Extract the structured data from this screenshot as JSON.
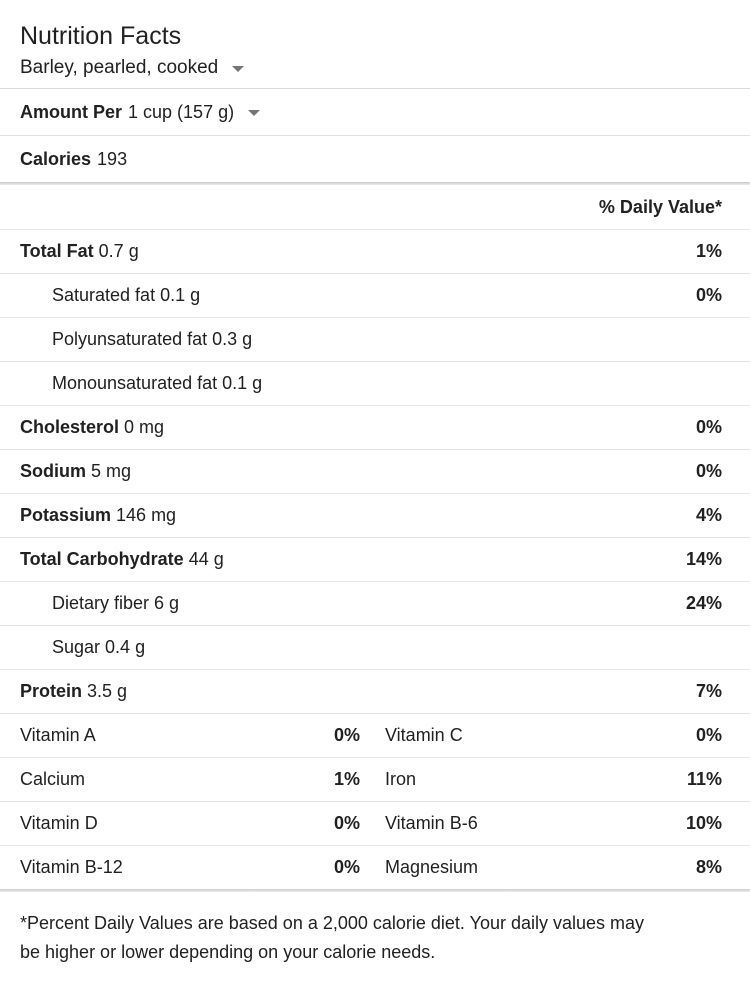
{
  "header": {
    "title": "Nutrition Facts",
    "food_name": "Barley, pearled, cooked"
  },
  "serving": {
    "label": "Amount Per",
    "value": "1 cup (157 g)"
  },
  "calories": {
    "label": "Calories",
    "value": "193"
  },
  "daily_value_header": "% Daily Value*",
  "nutrients": [
    {
      "label": "Total Fat",
      "amount": "0.7 g",
      "dv": "1%",
      "bold": true,
      "indent": false
    },
    {
      "label": "Saturated fat",
      "amount": "0.1 g",
      "dv": "0%",
      "bold": false,
      "indent": true
    },
    {
      "label": "Polyunsaturated fat",
      "amount": "0.3 g",
      "dv": "",
      "bold": false,
      "indent": true
    },
    {
      "label": "Monounsaturated fat",
      "amount": "0.1 g",
      "dv": "",
      "bold": false,
      "indent": true
    },
    {
      "label": "Cholesterol",
      "amount": "0 mg",
      "dv": "0%",
      "bold": true,
      "indent": false
    },
    {
      "label": "Sodium",
      "amount": "5 mg",
      "dv": "0%",
      "bold": true,
      "indent": false
    },
    {
      "label": "Potassium",
      "amount": "146 mg",
      "dv": "4%",
      "bold": true,
      "indent": false
    },
    {
      "label": "Total Carbohydrate",
      "amount": "44 g",
      "dv": "14%",
      "bold": true,
      "indent": false
    },
    {
      "label": "Dietary fiber",
      "amount": "6 g",
      "dv": "24%",
      "bold": false,
      "indent": true
    },
    {
      "label": "Sugar",
      "amount": "0.4 g",
      "dv": "",
      "bold": false,
      "indent": true
    },
    {
      "label": "Protein",
      "amount": "3.5 g",
      "dv": "7%",
      "bold": true,
      "indent": false
    }
  ],
  "micronutrients": [
    {
      "left": {
        "label": "Vitamin A",
        "dv": "0%"
      },
      "right": {
        "label": "Vitamin C",
        "dv": "0%"
      }
    },
    {
      "left": {
        "label": "Calcium",
        "dv": "1%"
      },
      "right": {
        "label": "Iron",
        "dv": "11%"
      }
    },
    {
      "left": {
        "label": "Vitamin D",
        "dv": "0%"
      },
      "right": {
        "label": "Vitamin B-6",
        "dv": "10%"
      }
    },
    {
      "left": {
        "label": "Vitamin B-12",
        "dv": "0%"
      },
      "right": {
        "label": "Magnesium",
        "dv": "8%"
      }
    }
  ],
  "footnote": "*Percent Daily Values are based on a 2,000 calorie diet. Your daily values may be higher or lower depending on your calorie needs.",
  "colors": {
    "text": "#212121",
    "row_divider": "#e5e5e5",
    "section_divider": "#cccccc",
    "arrow": "#757575"
  }
}
